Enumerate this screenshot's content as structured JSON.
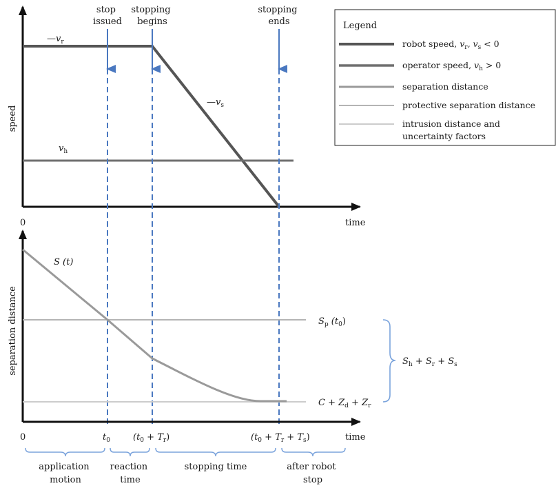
{
  "colors": {
    "robot_speed": "#555555",
    "operator_speed": "#6f6f6f",
    "separation_distance": "#9a9a9a",
    "protective_separation": "#b4b4b4",
    "intrusion": "#cccccc",
    "dashed_marker": "#4a78c0",
    "axis": "#111111",
    "brace": "#7aa3dc"
  },
  "events": {
    "stop_issued": [
      "stop",
      "issued"
    ],
    "stopping_begins": [
      "stopping",
      "begins"
    ],
    "stopping_ends": [
      "stopping",
      "ends"
    ]
  },
  "legend": {
    "title": "Legend",
    "items": [
      {
        "main": "robot speed, ",
        "math": "v",
        "sub": "r",
        "rest": ", v",
        "sub2": "s",
        "tail": " < 0",
        "color_key": "robot_speed"
      },
      {
        "main": "operator speed, ",
        "math": "v",
        "sub": "h",
        "rest": " > 0",
        "color_key": "operator_speed"
      },
      {
        "main": "separation distance",
        "color_key": "separation_distance"
      },
      {
        "main": "protective separation distance",
        "color_key": "protective_separation"
      },
      {
        "main": "intrusion distance and",
        "line2": "uncertainty factors",
        "color_key": "intrusion"
      }
    ]
  },
  "top_plot": {
    "ylabel": "speed",
    "xlabel": "time",
    "origin_label": "0",
    "label_vr": {
      "sign": "—",
      "var": "v",
      "sub": "r"
    },
    "label_vs": {
      "sign": "—",
      "var": "v",
      "sub": "s"
    },
    "label_vh": {
      "var": "v",
      "sub": "h"
    }
  },
  "bottom_plot": {
    "ylabel": "separation distance",
    "xlabel": "time",
    "curve_label": "S (t)",
    "sp_label": {
      "var": "S",
      "sub": "p",
      "arg": " (t",
      "argsub": "0",
      "close": ")"
    },
    "czz_label": {
      "a": "C + Z",
      "sub1": "d",
      "b": " + Z",
      "sub2": "r"
    },
    "brace_label": {
      "a": "S",
      "sub1": "h",
      "b": " + S",
      "sub2": "r",
      "c": " + S",
      "sub3": "s"
    },
    "x_ticks": {
      "zero": "0",
      "t0": {
        "var": "t",
        "sub": "0"
      },
      "t0_tr": {
        "open": "(t",
        "sub": "0",
        "mid": " + T",
        "sub2": "r",
        "close": ")"
      },
      "t0_tr_ts": {
        "open": "(t",
        "sub": "0",
        "mid": " + T",
        "sub2": "r",
        "mid2": " + T",
        "sub3": "s",
        "close": ")"
      }
    }
  },
  "phases": [
    {
      "line1": "application",
      "line2": "motion"
    },
    {
      "line1": "reaction",
      "line2": "time"
    },
    {
      "line1": "stopping time",
      "line2": ""
    },
    {
      "line1": "after robot",
      "line2": "stop"
    }
  ]
}
